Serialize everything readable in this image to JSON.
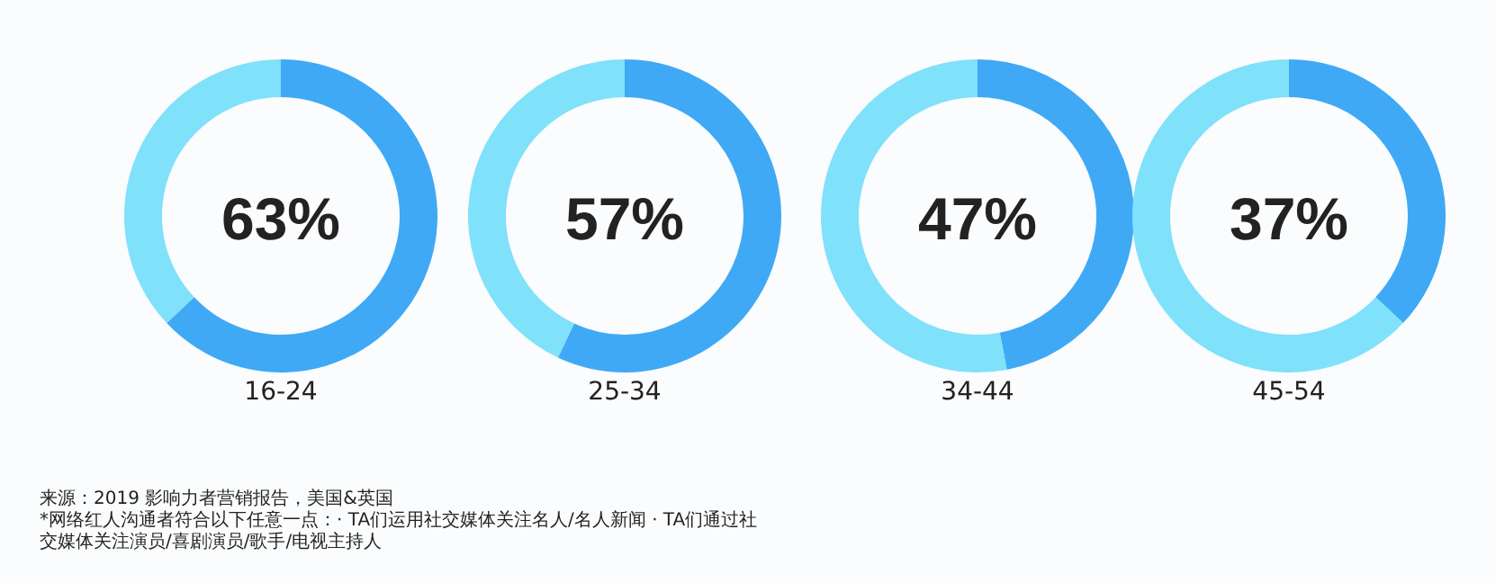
{
  "chart_data": [
    {
      "type": "donut",
      "title": "63%",
      "xlabel": "16-24",
      "categories": [
        null,
        null
      ],
      "values": [
        63,
        37
      ],
      "colors": [
        "#3fa9f5",
        "#80e1fb"
      ],
      "annotations": [
        "来源：2019 影响力者营销报告，美国&英国",
        "*网络红人沟通者符合以下任意一点：· TA们运用社交媒体关注名人/名人新闻 · TA们通过社交媒体关注演员/喜剧演员/歌手/电视主持人"
      ]
    },
    {
      "type": "donut",
      "title": "57%",
      "xlabel": "25-34",
      "categories": [
        null,
        null
      ],
      "values": [
        57,
        43
      ],
      "colors": [
        "#3fa9f5",
        "#80e1fb"
      ]
    },
    {
      "type": "donut",
      "title": "47%",
      "xlabel": "34-44",
      "categories": [
        null,
        null
      ],
      "values": [
        47,
        53
      ],
      "colors": [
        "#3fa9f5",
        "#80e1fb"
      ]
    },
    {
      "type": "donut",
      "title": "37%",
      "xlabel": "45-54",
      "categories": [
        null,
        null
      ],
      "values": [
        37,
        63
      ],
      "colors": [
        "#3fa9f5",
        "#80e1fb"
      ]
    }
  ]
}
